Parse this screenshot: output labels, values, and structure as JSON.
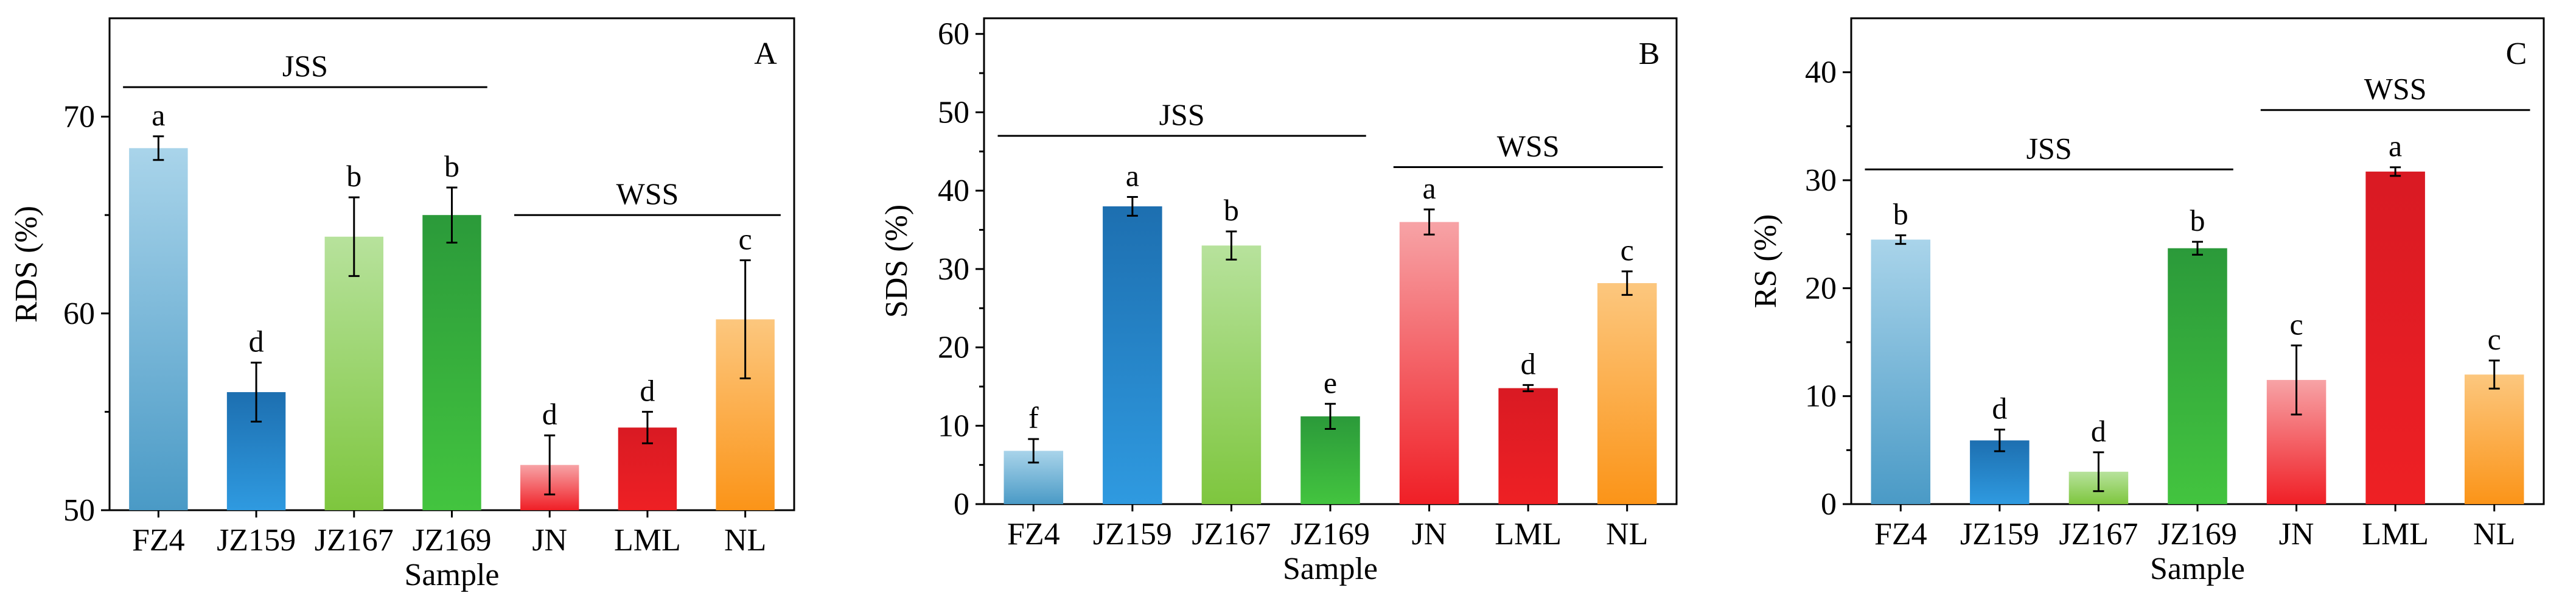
{
  "chart_data": [
    {
      "type": "bar",
      "panel_label": "A",
      "ylabel": "RDS (%)",
      "xlabel": "Sample",
      "ylim": [
        50,
        75
      ],
      "yticks": [
        50,
        60,
        70
      ],
      "categories": [
        "FZ4",
        "JZ159",
        "JZ167",
        "JZ169",
        "JN",
        "LML",
        "NL"
      ],
      "values": [
        68.4,
        56.0,
        63.9,
        65.0,
        52.3,
        54.2,
        59.7
      ],
      "errors": [
        0.6,
        1.5,
        2.0,
        1.4,
        1.5,
        0.8,
        3.0
      ],
      "letters": [
        "a",
        "d",
        "b",
        "b",
        "d",
        "d",
        "c"
      ],
      "groups": [
        {
          "label": "JSS",
          "from": 0,
          "to": 3,
          "y": 71.5
        },
        {
          "label": "WSS",
          "from": 4,
          "to": 6,
          "y": 65.0
        }
      ]
    },
    {
      "type": "bar",
      "panel_label": "B",
      "ylabel": "SDS (%)",
      "xlabel": "Sample",
      "ylim": [
        0,
        62
      ],
      "yticks": [
        0,
        10,
        20,
        30,
        40,
        50,
        60
      ],
      "categories": [
        "FZ4",
        "JZ159",
        "JZ167",
        "JZ169",
        "JN",
        "LML",
        "NL"
      ],
      "values": [
        6.8,
        38.0,
        33.0,
        11.2,
        36.0,
        14.8,
        28.2
      ],
      "errors": [
        1.5,
        1.2,
        1.8,
        1.6,
        1.6,
        0.4,
        1.5
      ],
      "letters": [
        "f",
        "a",
        "b",
        "e",
        "a",
        "d",
        "c"
      ],
      "groups": [
        {
          "label": "JSS",
          "from": 0,
          "to": 3,
          "y": 47.0
        },
        {
          "label": "WSS",
          "from": 4,
          "to": 6,
          "y": 43.0
        }
      ]
    },
    {
      "type": "bar",
      "panel_label": "C",
      "ylabel": "RS (%)",
      "xlabel": "Sample",
      "ylim": [
        0,
        45
      ],
      "yticks": [
        0,
        10,
        20,
        30,
        40
      ],
      "categories": [
        "FZ4",
        "JZ159",
        "JZ167",
        "JZ169",
        "JN",
        "LML",
        "NL"
      ],
      "values": [
        24.5,
        5.9,
        3.0,
        23.7,
        11.5,
        30.8,
        12.0
      ],
      "errors": [
        0.4,
        1.0,
        1.8,
        0.6,
        3.2,
        0.4,
        1.3
      ],
      "letters": [
        "b",
        "d",
        "d",
        "b",
        "c",
        "a",
        "c"
      ],
      "groups": [
        {
          "label": "JSS",
          "from": 0,
          "to": 3,
          "y": 31.0
        },
        {
          "label": "WSS",
          "from": 4,
          "to": 6,
          "y": 36.5
        }
      ]
    }
  ],
  "colors": {
    "FZ4": [
      "#a9d4ea",
      "#4a9ac6"
    ],
    "JZ159": [
      "#1d6fb0",
      "#2f9ae0"
    ],
    "JZ167": [
      "#b7e29c",
      "#7ec63e"
    ],
    "JZ169": [
      "#2b9a3a",
      "#43c43f"
    ],
    "JN": [
      "#f7a3a6",
      "#f01f26"
    ],
    "LML": [
      "#d91a23",
      "#ee2024"
    ],
    "NL": [
      "#fcc77e",
      "#fb9418"
    ],
    "axis": "#000000"
  }
}
